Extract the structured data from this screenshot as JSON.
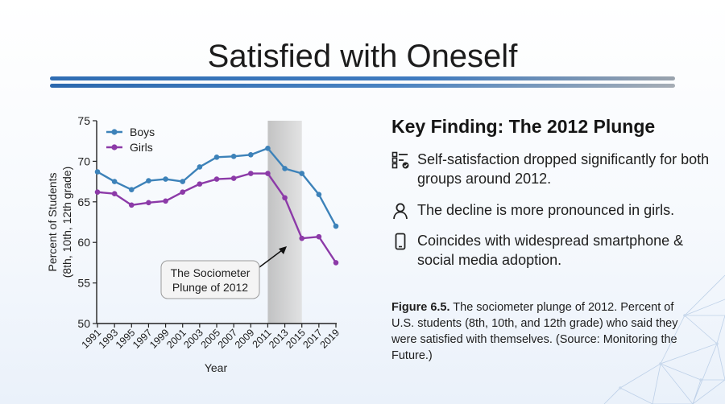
{
  "title": "Satisfied with Oneself",
  "key_finding": {
    "heading": "Key Finding: The 2012 Plunge",
    "bullets": [
      {
        "icon": "checklist-icon",
        "text": "Self-satisfaction dropped significantly for both groups around 2012."
      },
      {
        "icon": "person-icon",
        "text": "The decline is more pronounced in girls."
      },
      {
        "icon": "smartphone-icon",
        "text": "Coincides with widespread smartphone & social media adoption."
      }
    ]
  },
  "caption": {
    "figure_label": "Figure 6.5.",
    "text": " The sociometer plunge of 2012. Percent of U.S. students (8th, 10th, and 12th grade) who said they were satisfied with themselves. (Source: Monitoring the Future.)"
  },
  "chart_data": {
    "type": "line",
    "xlabel": "Year",
    "ylabel": [
      "Percent of Students",
      "(8th, 10th, 12th grade)"
    ],
    "ylim": [
      50,
      75
    ],
    "yticks": [
      50,
      55,
      60,
      65,
      70,
      75
    ],
    "x": [
      "1991",
      "1993",
      "1995",
      "1997",
      "1999",
      "2001",
      "2003",
      "2005",
      "2007",
      "2009",
      "2011",
      "2013",
      "2015",
      "2017",
      "2019"
    ],
    "series": [
      {
        "name": "Boys",
        "color": "#3d82b9",
        "values": [
          68.7,
          67.5,
          66.5,
          67.6,
          67.8,
          67.5,
          69.3,
          70.5,
          70.6,
          70.8,
          71.6,
          69.1,
          68.5,
          65.9,
          62.0
        ]
      },
      {
        "name": "Girls",
        "color": "#8c3aa8",
        "values": [
          66.2,
          66.0,
          64.6,
          64.9,
          65.1,
          66.2,
          67.2,
          67.8,
          67.9,
          68.5,
          68.5,
          65.5,
          60.5,
          60.7,
          57.5
        ]
      }
    ],
    "highlight": {
      "from": "2011",
      "to": "2015"
    },
    "legend": "top-left",
    "annotation": {
      "line1": "The Sociometer",
      "line2": "Plunge of 2012"
    }
  }
}
